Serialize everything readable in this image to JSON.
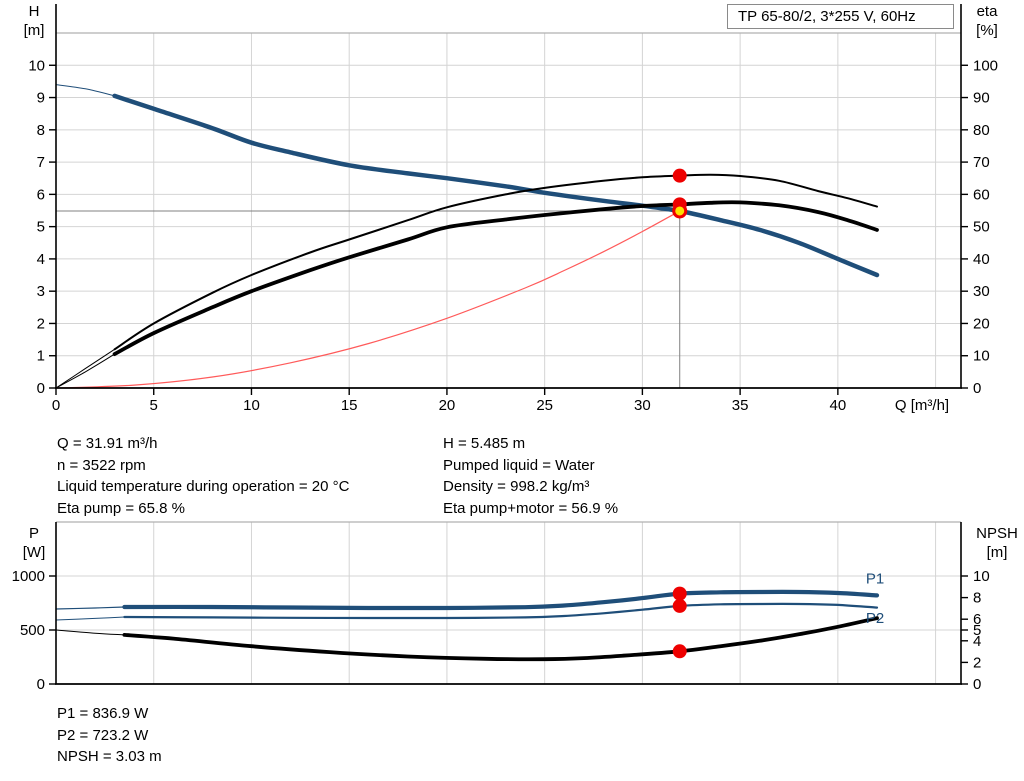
{
  "title_box": {
    "label": "TP 65-80/2, 3*255 V, 60Hz"
  },
  "info_top_left": {
    "lines": [
      "Q = 31.91 m³/h",
      "n = 3522 rpm",
      "Liquid temperature during operation = 20 °C",
      "Eta pump = 65.8 %"
    ]
  },
  "info_top_right": {
    "lines": [
      "H = 5.485 m",
      "Pumped liquid = Water",
      "Density = 998.2 kg/m³",
      "Eta pump+motor = 56.9 %"
    ]
  },
  "info_bottom": {
    "lines": [
      "P1 = 836.9 W",
      "P2 = 723.2 W",
      "NPSH = 3.03 m"
    ]
  },
  "colors": {
    "curve_blue": "#1f4e79",
    "curve_black": "#000000",
    "system_red": "#ff5a5a",
    "marker_red": "#ee0000",
    "marker_yellow": "#ffdf00",
    "grid": "#d4d4d4",
    "crosshair": "#808080",
    "axis": "#000000",
    "frame_top": "#b0b0b0"
  },
  "chart_data": [
    {
      "type": "line",
      "title": "TP 65-80/2, 3*255 V, 60Hz",
      "x_axis": {
        "label": "Q [m³/h]",
        "min": 0,
        "max": 46.3,
        "ticks": [
          0,
          5,
          10,
          15,
          20,
          25,
          30,
          35,
          40
        ],
        "gridlines": [
          5,
          10,
          15,
          20,
          25,
          30,
          35,
          40,
          45
        ],
        "show_tick_labels": true
      },
      "y_left": {
        "label": "H",
        "unit": "[m]",
        "min": 0,
        "max": 11,
        "ticks": [
          0,
          1,
          2,
          3,
          4,
          5,
          6,
          7,
          8,
          9,
          10
        ],
        "gridlines": [
          1,
          2,
          3,
          4,
          5,
          6,
          7,
          8,
          9,
          10,
          11
        ]
      },
      "y_right": {
        "label": "eta",
        "unit": "[%]",
        "min": 0,
        "max": 110,
        "ticks": [
          0,
          10,
          20,
          30,
          40,
          50,
          60,
          70,
          80,
          90,
          100
        ]
      },
      "series": [
        {
          "name": "head-curve-lead",
          "axis": "left",
          "color": "#1f4e79",
          "width": 1,
          "points": [
            [
              0,
              9.4
            ],
            [
              1.5,
              9.27
            ],
            [
              3,
              9.05
            ]
          ]
        },
        {
          "name": "head-curve",
          "axis": "left",
          "color": "#1f4e79",
          "width": 4.5,
          "points": [
            [
              3,
              9.05
            ],
            [
              5,
              8.65
            ],
            [
              8,
              8.05
            ],
            [
              10,
              7.6
            ],
            [
              12,
              7.3
            ],
            [
              15,
              6.9
            ],
            [
              18,
              6.65
            ],
            [
              20,
              6.5
            ],
            [
              23,
              6.25
            ],
            [
              25,
              6.05
            ],
            [
              28,
              5.8
            ],
            [
              30,
              5.65
            ],
            [
              31.91,
              5.485
            ],
            [
              34,
              5.2
            ],
            [
              36,
              4.9
            ],
            [
              38,
              4.5
            ],
            [
              40,
              4.0
            ],
            [
              42,
              3.5
            ]
          ]
        },
        {
          "name": "eta-pump-curve-lead",
          "axis": "right",
          "color": "#000000",
          "width": 1,
          "points": [
            [
              0,
              0
            ],
            [
              1.5,
              6
            ],
            [
              3,
              12
            ]
          ]
        },
        {
          "name": "eta-pump-curve",
          "axis": "right",
          "color": "#000000",
          "width": 2,
          "points": [
            [
              3,
              12
            ],
            [
              5,
              20
            ],
            [
              8,
              29.5
            ],
            [
              10,
              35
            ],
            [
              13,
              42
            ],
            [
              15,
              46
            ],
            [
              18,
              52
            ],
            [
              20,
              56
            ],
            [
              23,
              60
            ],
            [
              25,
              62
            ],
            [
              28,
              64.2
            ],
            [
              30,
              65.3
            ],
            [
              31.91,
              65.8
            ],
            [
              33.5,
              66.1
            ],
            [
              35,
              65.7
            ],
            [
              37,
              64.2
            ],
            [
              39,
              61
            ],
            [
              40.5,
              58.8
            ],
            [
              42,
              56.2
            ]
          ]
        },
        {
          "name": "eta-pump-motor-curve-lead",
          "axis": "right",
          "color": "#000000",
          "width": 1,
          "points": [
            [
              0,
              0
            ],
            [
              1.5,
              5
            ],
            [
              3,
              10.5
            ]
          ]
        },
        {
          "name": "eta-pump-motor-curve",
          "axis": "right",
          "color": "#000000",
          "width": 3.8,
          "points": [
            [
              3,
              10.5
            ],
            [
              5,
              17
            ],
            [
              8,
              25
            ],
            [
              10,
              30
            ],
            [
              13,
              36.5
            ],
            [
              15,
              40.5
            ],
            [
              18,
              46
            ],
            [
              20,
              49.8
            ],
            [
              23,
              52.2
            ],
            [
              25,
              53.6
            ],
            [
              28,
              55.4
            ],
            [
              30,
              56.4
            ],
            [
              31.91,
              56.9
            ],
            [
              33.5,
              57.4
            ],
            [
              35,
              57.5
            ],
            [
              37,
              56.6
            ],
            [
              39,
              54.5
            ],
            [
              40.5,
              52
            ],
            [
              42,
              49
            ]
          ]
        },
        {
          "name": "system-curve",
          "axis": "left",
          "color": "#ff5a5a",
          "width": 1.2,
          "points": [
            [
              0,
              0
            ],
            [
              4,
              0.09
            ],
            [
              8,
              0.34
            ],
            [
              12,
              0.78
            ],
            [
              16,
              1.38
            ],
            [
              20,
              2.16
            ],
            [
              24,
              3.1
            ],
            [
              26,
              3.64
            ],
            [
              28,
              4.22
            ],
            [
              30,
              4.85
            ],
            [
              31.91,
              5.485
            ]
          ]
        }
      ],
      "operating_point": {
        "q": 31.91,
        "h": 5.485,
        "crosshair": true
      },
      "markers": [
        {
          "x": 31.91,
          "value": 65.8,
          "axis": "right",
          "style": "red"
        },
        {
          "x": 31.91,
          "value": 56.9,
          "axis": "right",
          "style": "red"
        },
        {
          "x": 31.91,
          "value": 5.485,
          "axis": "left",
          "style": "yellow"
        }
      ],
      "annotations": []
    },
    {
      "type": "line",
      "title": "",
      "x_axis": {
        "label": "",
        "min": 0,
        "max": 46.3,
        "ticks": [],
        "gridlines": [
          5,
          10,
          15,
          20,
          25,
          30,
          35,
          40,
          45
        ],
        "show_tick_labels": false
      },
      "y_left": {
        "label": "P",
        "unit": "[W]",
        "min": 0,
        "max": 1500,
        "ticks": [
          0,
          500,
          1000
        ],
        "gridlines": [
          500,
          1000
        ]
      },
      "y_right": {
        "label": "NPSH",
        "unit": "[m]",
        "min": 0,
        "max": 15,
        "ticks": [
          0,
          2,
          4,
          5,
          6,
          8,
          10
        ]
      },
      "series": [
        {
          "name": "p1-curve-lead",
          "axis": "left",
          "color": "#1f4e79",
          "width": 1.2,
          "points": [
            [
              0,
              694
            ],
            [
              2,
              704
            ],
            [
              3.5,
              713
            ]
          ]
        },
        {
          "name": "p1-curve",
          "axis": "left",
          "color": "#1f4e79",
          "width": 4.2,
          "points": [
            [
              3.5,
              713
            ],
            [
              8,
              713
            ],
            [
              12,
              708
            ],
            [
              16,
              704
            ],
            [
              20,
              704
            ],
            [
              24,
              711
            ],
            [
              26,
              727
            ],
            [
              28,
              757
            ],
            [
              30,
              795
            ],
            [
              31.91,
              837
            ],
            [
              34,
              849
            ],
            [
              36,
              852
            ],
            [
              38,
              852
            ],
            [
              40,
              843
            ],
            [
              42,
              820
            ]
          ]
        },
        {
          "name": "p2-curve-lead",
          "axis": "left",
          "color": "#1f4e79",
          "width": 1,
          "points": [
            [
              0,
              593
            ],
            [
              2,
              607
            ],
            [
              3.5,
              620
            ]
          ]
        },
        {
          "name": "p2-curve",
          "axis": "left",
          "color": "#1f4e79",
          "width": 2.2,
          "points": [
            [
              3.5,
              620
            ],
            [
              8,
              617
            ],
            [
              12,
              613
            ],
            [
              16,
              611
            ],
            [
              20,
              611
            ],
            [
              24,
              617
            ],
            [
              26,
              630
            ],
            [
              28,
              655
            ],
            [
              30,
              688
            ],
            [
              31.91,
              723
            ],
            [
              34,
              738
            ],
            [
              36,
              741
            ],
            [
              38,
              741
            ],
            [
              40,
              732
            ],
            [
              42,
              707
            ]
          ]
        },
        {
          "name": "npsh-curve-lead",
          "axis": "right",
          "color": "#000000",
          "width": 1,
          "points": [
            [
              0,
              5.0
            ],
            [
              2,
              4.7
            ],
            [
              3.5,
              4.55
            ]
          ]
        },
        {
          "name": "npsh-curve",
          "axis": "right",
          "color": "#000000",
          "width": 3.8,
          "points": [
            [
              3.5,
              4.55
            ],
            [
              6,
              4.2
            ],
            [
              10,
              3.5
            ],
            [
              14,
              2.95
            ],
            [
              18,
              2.55
            ],
            [
              22,
              2.33
            ],
            [
              25,
              2.3
            ],
            [
              27,
              2.4
            ],
            [
              29,
              2.62
            ],
            [
              31.91,
              3.03
            ],
            [
              34,
              3.5
            ],
            [
              36,
              4.0
            ],
            [
              38,
              4.6
            ],
            [
              40,
              5.3
            ],
            [
              42,
              6.1
            ]
          ]
        }
      ],
      "markers": [
        {
          "x": 31.91,
          "value": 836.9,
          "axis": "left",
          "style": "red"
        },
        {
          "x": 31.91,
          "value": 723.2,
          "axis": "left",
          "style": "red"
        },
        {
          "x": 31.91,
          "value": 3.03,
          "axis": "right",
          "style": "red"
        }
      ],
      "annotations": [
        {
          "text": "P1",
          "x": 41.9,
          "value": 975,
          "axis": "left",
          "color": "#1f4e79"
        },
        {
          "text": "P2",
          "x": 41.9,
          "value": 610,
          "axis": "left",
          "color": "#1f4e79"
        }
      ]
    }
  ]
}
